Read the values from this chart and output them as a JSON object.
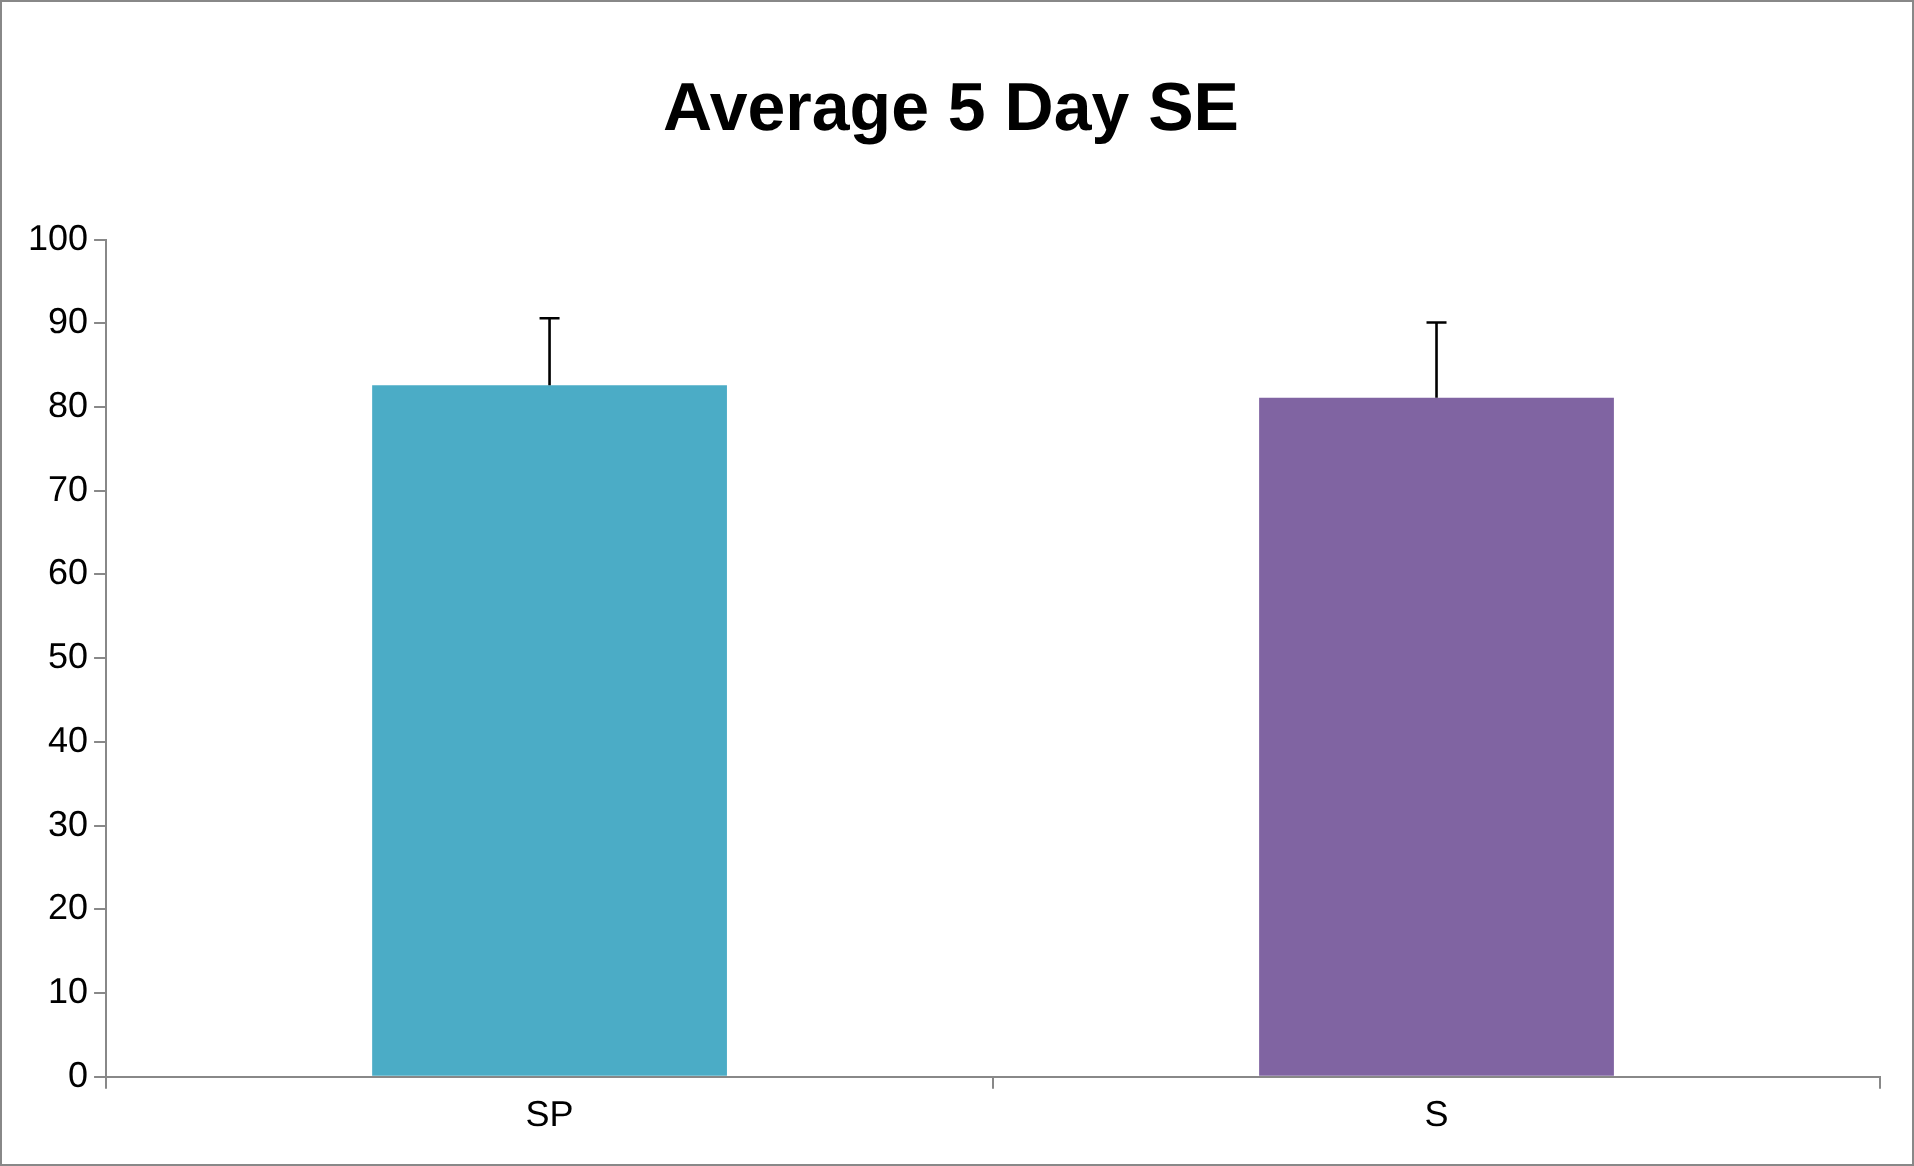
{
  "chart_data": {
    "type": "bar",
    "title": "Average 5 Day SE",
    "categories": [
      "SP",
      "S"
    ],
    "values": [
      82.6,
      81.1
    ],
    "colors": [
      "#4bacc6",
      "#8064a2"
    ],
    "errors": [
      [
        82.6,
        90.6
      ],
      [
        81.1,
        90.1
      ]
    ],
    "ylim": [
      0,
      100
    ],
    "yticks": [
      0,
      10,
      20,
      30,
      40,
      50,
      60,
      70,
      80,
      90,
      100
    ],
    "grid": false,
    "legend": false
  }
}
